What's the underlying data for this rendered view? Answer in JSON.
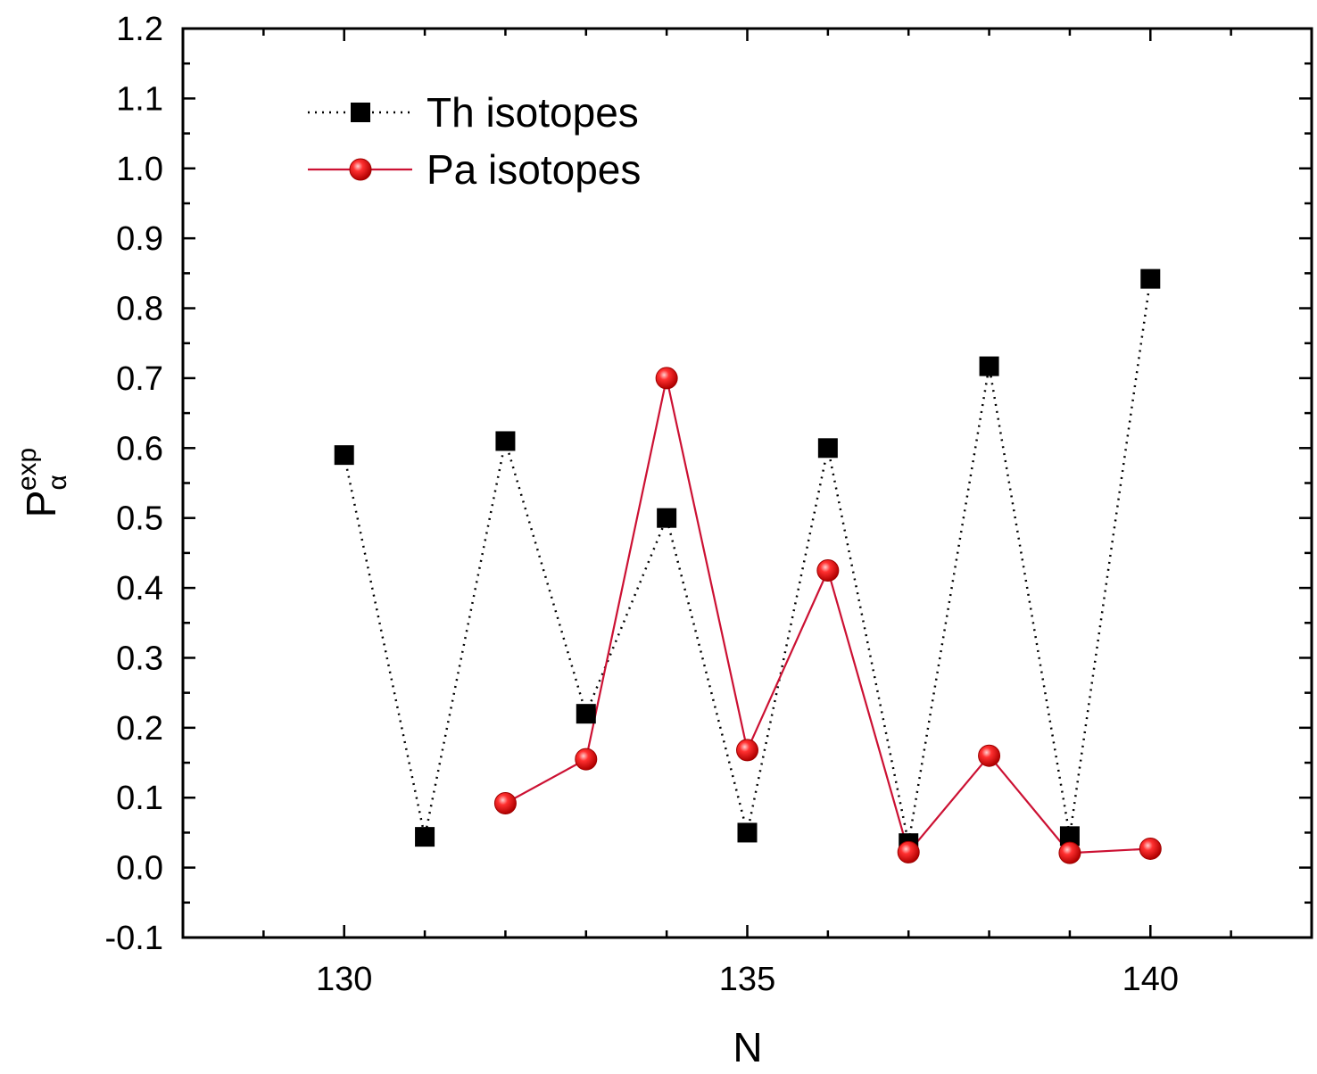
{
  "chart_data": {
    "type": "line",
    "xlabel": "N",
    "ylabel": {
      "main": "P",
      "sup": "exp",
      "sub": "α"
    },
    "xlim": [
      128,
      142
    ],
    "ylim": [
      -0.1,
      1.2
    ],
    "xticks": [
      130,
      135,
      140
    ],
    "yticks": [
      -0.1,
      0.0,
      0.1,
      0.2,
      0.3,
      0.4,
      0.5,
      0.6,
      0.7,
      0.8,
      0.9,
      1.0,
      1.1,
      1.2
    ],
    "xtick_labels": [
      "130",
      "135",
      "140"
    ],
    "ytick_labels": [
      "-0.1",
      "0.0",
      "0.1",
      "0.2",
      "0.3",
      "0.4",
      "0.5",
      "0.6",
      "0.7",
      "0.8",
      "0.9",
      "1.0",
      "1.1",
      "1.2"
    ],
    "legend_position": "top-left",
    "grid": false,
    "series": [
      {
        "name": "Th isotopes",
        "marker": "square",
        "line": "dotted",
        "color": "#000000",
        "x": [
          130,
          131,
          132,
          133,
          134,
          135,
          136,
          137,
          138,
          139,
          140
        ],
        "y": [
          0.59,
          0.044,
          0.61,
          0.22,
          0.5,
          0.05,
          0.6,
          0.035,
          0.717,
          0.045,
          0.842
        ]
      },
      {
        "name": "Pa isotopes",
        "marker": "circle",
        "line": "solid",
        "color": "#cc1133",
        "markerColor": "#ee0000",
        "x": [
          132,
          133,
          134,
          135,
          136,
          137,
          138,
          139,
          140
        ],
        "y": [
          0.092,
          0.155,
          0.7,
          0.168,
          0.425,
          0.022,
          0.16,
          0.021,
          0.027
        ]
      }
    ]
  }
}
